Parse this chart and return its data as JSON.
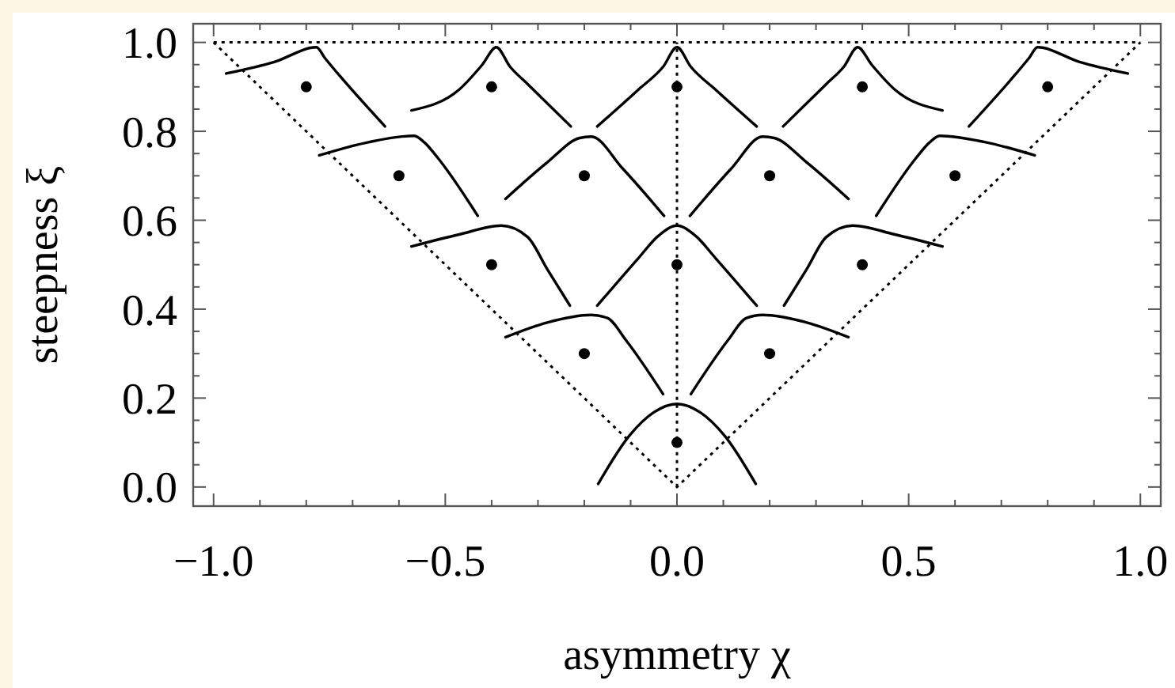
{
  "chart_data": {
    "type": "scatter",
    "xlabel": "asymmetry χ",
    "ylabel": "steepness ξ",
    "xlim": [
      -1.044,
      1.044
    ],
    "ylim": [
      -0.043,
      1.042
    ],
    "xticks": [
      {
        "value": -1,
        "label": "−1.0"
      },
      {
        "value": -0.9,
        "label": null
      },
      {
        "value": -0.8,
        "label": null
      },
      {
        "value": -0.7,
        "label": null
      },
      {
        "value": -0.6,
        "label": null
      },
      {
        "value": -0.5,
        "label": "−0.5"
      },
      {
        "value": -0.4,
        "label": null
      },
      {
        "value": -0.3,
        "label": null
      },
      {
        "value": -0.2,
        "label": null
      },
      {
        "value": -0.1,
        "label": null
      },
      {
        "value": 0,
        "label": "0.0"
      },
      {
        "value": 0.1,
        "label": null
      },
      {
        "value": 0.2,
        "label": null
      },
      {
        "value": 0.3,
        "label": null
      },
      {
        "value": 0.4,
        "label": null
      },
      {
        "value": 0.5,
        "label": "0.5"
      },
      {
        "value": 0.6,
        "label": null
      },
      {
        "value": 0.7,
        "label": null
      },
      {
        "value": 0.8,
        "label": null
      },
      {
        "value": 0.9,
        "label": null
      },
      {
        "value": 1,
        "label": "1.0"
      }
    ],
    "yticks": [
      {
        "value": 0,
        "label": "0.0"
      },
      {
        "value": 0.05,
        "label": null
      },
      {
        "value": 0.1,
        "label": null
      },
      {
        "value": 0.15,
        "label": null
      },
      {
        "value": 0.2,
        "label": "0.2"
      },
      {
        "value": 0.25,
        "label": null
      },
      {
        "value": 0.3,
        "label": null
      },
      {
        "value": 0.35,
        "label": null
      },
      {
        "value": 0.4,
        "label": "0.4"
      },
      {
        "value": 0.45,
        "label": null
      },
      {
        "value": 0.5,
        "label": null
      },
      {
        "value": 0.55,
        "label": null
      },
      {
        "value": 0.6,
        "label": "0.6"
      },
      {
        "value": 0.65,
        "label": null
      },
      {
        "value": 0.7,
        "label": null
      },
      {
        "value": 0.75,
        "label": null
      },
      {
        "value": 0.8,
        "label": "0.8"
      },
      {
        "value": 0.85,
        "label": null
      },
      {
        "value": 0.9,
        "label": null
      },
      {
        "value": 0.95,
        "label": null
      },
      {
        "value": 1,
        "label": "1.0"
      }
    ],
    "series": [
      {
        "type": "line",
        "color": "#000000",
        "line_style": "dotted",
        "x": [
          -1,
          0,
          1
        ],
        "values": [
          1,
          0,
          1
        ]
      },
      {
        "type": "line",
        "color": "#000000",
        "line_style": "dotted",
        "x": [
          -1,
          1
        ],
        "values": [
          1,
          1
        ]
      },
      {
        "type": "line",
        "color": "#000000",
        "line_style": "dotted",
        "x": [
          0,
          0
        ],
        "values": [
          0,
          1
        ]
      },
      {
        "type": "line",
        "color": "#000000",
        "line_style": "solid",
        "x": [
          -0.973,
          -0.869,
          -0.778,
          -0.76,
          -0.732,
          -0.63
        ],
        "values": [
          0.93,
          0.956,
          0.989,
          0.965,
          0.93,
          0.811
        ]
      },
      {
        "type": "line",
        "color": "#000000",
        "line_style": "solid",
        "x": [
          -0.573,
          -0.47,
          -0.42,
          -0.39,
          -0.36,
          -0.322,
          -0.229
        ],
        "values": [
          0.847,
          0.894,
          0.95,
          0.989,
          0.945,
          0.906,
          0.811
        ]
      },
      {
        "type": "line",
        "color": "#000000",
        "line_style": "solid",
        "x": [
          -0.172,
          -0.083,
          -0.03,
          0,
          0.03,
          0.083,
          0.172
        ],
        "values": [
          0.811,
          0.894,
          0.945,
          0.989,
          0.945,
          0.894,
          0.811
        ]
      },
      {
        "type": "line",
        "color": "#000000",
        "line_style": "solid",
        "x": [
          0.229,
          0.322,
          0.36,
          0.39,
          0.42,
          0.47,
          0.573
        ],
        "values": [
          0.811,
          0.906,
          0.945,
          0.989,
          0.95,
          0.894,
          0.847
        ]
      },
      {
        "type": "line",
        "color": "#000000",
        "line_style": "solid",
        "x": [
          0.63,
          0.732,
          0.76,
          0.778,
          0.869,
          0.973
        ],
        "values": [
          0.811,
          0.93,
          0.965,
          0.989,
          0.956,
          0.93
        ]
      },
      {
        "type": "line",
        "color": "#000000",
        "line_style": "solid",
        "x": [
          -0.772,
          -0.664,
          -0.567,
          -0.545,
          -0.516,
          -0.43
        ],
        "values": [
          0.746,
          0.776,
          0.79,
          0.775,
          0.74,
          0.61
        ]
      },
      {
        "type": "line",
        "color": "#000000",
        "line_style": "solid",
        "x": [
          -0.37,
          -0.28,
          -0.21,
          -0.185,
          -0.117,
          -0.028
        ],
        "values": [
          0.648,
          0.73,
          0.785,
          0.788,
          0.716,
          0.61
        ]
      },
      {
        "type": "line",
        "color": "#000000",
        "line_style": "solid",
        "x": [
          0.028,
          0.117,
          0.185,
          0.21,
          0.28,
          0.37
        ],
        "values": [
          0.61,
          0.716,
          0.788,
          0.785,
          0.73,
          0.648
        ]
      },
      {
        "type": "line",
        "color": "#000000",
        "line_style": "solid",
        "x": [
          0.43,
          0.516,
          0.545,
          0.567,
          0.664,
          0.772
        ],
        "values": [
          0.61,
          0.74,
          0.775,
          0.79,
          0.776,
          0.746
        ]
      },
      {
        "type": "line",
        "color": "#000000",
        "line_style": "solid",
        "x": [
          -0.573,
          -0.47,
          -0.379,
          -0.322,
          -0.28,
          -0.231
        ],
        "values": [
          0.541,
          0.568,
          0.588,
          0.562,
          0.49,
          0.408
        ]
      },
      {
        "type": "line",
        "color": "#000000",
        "line_style": "solid",
        "x": [
          -0.172,
          -0.083,
          -0.04,
          0,
          0.04,
          0.083,
          0.172
        ],
        "values": [
          0.408,
          0.515,
          0.565,
          0.588,
          0.565,
          0.515,
          0.408
        ]
      },
      {
        "type": "line",
        "color": "#000000",
        "line_style": "solid",
        "x": [
          0.231,
          0.28,
          0.322,
          0.379,
          0.47,
          0.573
        ],
        "values": [
          0.408,
          0.49,
          0.562,
          0.588,
          0.568,
          0.541
        ]
      },
      {
        "type": "line",
        "color": "#000000",
        "line_style": "solid",
        "x": [
          -0.37,
          -0.28,
          -0.185,
          -0.15,
          -0.11,
          -0.03
        ],
        "values": [
          0.337,
          0.37,
          0.387,
          0.38,
          0.33,
          0.209
        ]
      },
      {
        "type": "line",
        "color": "#000000",
        "line_style": "solid",
        "x": [
          0.03,
          0.11,
          0.15,
          0.185,
          0.28,
          0.37
        ],
        "values": [
          0.209,
          0.33,
          0.38,
          0.387,
          0.37,
          0.337
        ]
      },
      {
        "type": "line",
        "color": "#000000",
        "line_style": "solid",
        "x": [
          -0.17,
          -0.103,
          -0.05,
          0,
          0.05,
          0.103,
          0.17
        ],
        "values": [
          0.007,
          0.115,
          0.168,
          0.187,
          0.168,
          0.115,
          0.007
        ]
      },
      {
        "color": "#000000",
        "marker": "circle",
        "x": [
          -0.8,
          -0.4,
          0,
          0.4,
          0.8,
          -0.6,
          -0.2,
          0.2,
          0.6,
          -0.4,
          0,
          0.4,
          -0.2,
          0.2,
          0
        ],
        "values": [
          0.9,
          0.9,
          0.9,
          0.9,
          0.9,
          0.7,
          0.7,
          0.7,
          0.7,
          0.5,
          0.5,
          0.5,
          0.3,
          0.3,
          0.1
        ]
      }
    ]
  }
}
